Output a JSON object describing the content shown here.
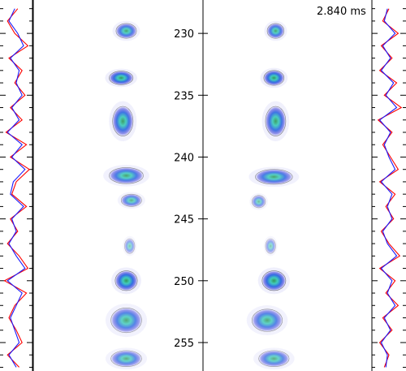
{
  "time_label": "2.840 ms",
  "chart_data": {
    "type": "heatmap",
    "y_axis": {
      "ticks": [
        230,
        235,
        240,
        245,
        250,
        255
      ],
      "ylim": [
        257.3,
        227.3
      ],
      "inverted": true
    },
    "panels": [
      "left-image",
      "right-image"
    ],
    "colormap": "white-blue-cyan-green",
    "left_profile": {
      "series": [
        {
          "name": "",
          "color": "#ff0000",
          "y": [
            228,
            229,
            230,
            231,
            232,
            233,
            234,
            235,
            236,
            237,
            238,
            239,
            240,
            241,
            242,
            243,
            244,
            245,
            246,
            247,
            248,
            249,
            250,
            251,
            252,
            253,
            254,
            255,
            256,
            257
          ],
          "values": [
            0.55,
            0.2,
            0.45,
            0.9,
            0.25,
            0.7,
            0.45,
            0.8,
            0.3,
            0.7,
            0.15,
            0.85,
            0.3,
            0.95,
            0.5,
            0.35,
            0.85,
            0.3,
            0.55,
            0.2,
            0.6,
            0.9,
            0.1,
            0.85,
            0.45,
            0.25,
            0.5,
            0.7,
            0.2,
            0.6
          ]
        },
        {
          "name": "",
          "color": "#1a1aff",
          "y": [
            228,
            229,
            230,
            231,
            232,
            233,
            234,
            235,
            236,
            237,
            238,
            239,
            240,
            241,
            242,
            243,
            244,
            245,
            246,
            247,
            248,
            249,
            250,
            251,
            252,
            253,
            254,
            255,
            256,
            257
          ],
          "values": [
            0.45,
            0.25,
            0.55,
            0.75,
            0.3,
            0.6,
            0.5,
            0.7,
            0.35,
            0.6,
            0.2,
            0.7,
            0.35,
            0.8,
            0.4,
            0.3,
            0.75,
            0.35,
            0.5,
            0.25,
            0.5,
            0.8,
            0.2,
            0.7,
            0.5,
            0.3,
            0.45,
            0.6,
            0.25,
            0.5
          ]
        }
      ]
    },
    "right_profile": {
      "series": [
        {
          "name": "",
          "color": "#ff0000",
          "y": [
            228,
            229,
            230,
            231,
            232,
            233,
            234,
            235,
            236,
            237,
            238,
            239,
            240,
            241,
            242,
            243,
            244,
            245,
            246,
            247,
            248,
            249,
            250,
            251,
            252,
            253,
            254,
            255,
            256,
            257
          ],
          "values": [
            0.5,
            0.3,
            0.8,
            0.25,
            0.6,
            0.2,
            0.75,
            0.35,
            0.9,
            0.15,
            0.6,
            0.3,
            0.55,
            0.8,
            0.2,
            0.7,
            0.4,
            0.65,
            0.25,
            0.5,
            0.85,
            0.2,
            0.7,
            0.4,
            0.8,
            0.3,
            0.6,
            0.2,
            0.5,
            0.35
          ]
        },
        {
          "name": "",
          "color": "#1a1aff",
          "y": [
            228,
            229,
            230,
            231,
            232,
            233,
            234,
            235,
            236,
            237,
            238,
            239,
            240,
            241,
            242,
            243,
            244,
            245,
            246,
            247,
            248,
            249,
            250,
            251,
            252,
            253,
            254,
            255,
            256,
            257
          ],
          "values": [
            0.45,
            0.35,
            0.7,
            0.3,
            0.55,
            0.25,
            0.65,
            0.4,
            0.75,
            0.2,
            0.55,
            0.35,
            0.5,
            0.7,
            0.25,
            0.6,
            0.45,
            0.6,
            0.3,
            0.45,
            0.75,
            0.25,
            0.6,
            0.45,
            0.7,
            0.35,
            0.55,
            0.25,
            0.45,
            0.4
          ]
        }
      ]
    },
    "blobs": [
      {
        "panel": "left-image",
        "y": 229.8,
        "x": 0.55,
        "w": 0.12,
        "h": 1.2,
        "intensity": 0.8
      },
      {
        "panel": "left-image",
        "y": 233.6,
        "x": 0.52,
        "w": 0.14,
        "h": 1.1,
        "intensity": 0.9
      },
      {
        "panel": "left-image",
        "y": 237.1,
        "x": 0.53,
        "w": 0.12,
        "h": 2.4,
        "intensity": 0.85
      },
      {
        "panel": "left-image",
        "y": 241.5,
        "x": 0.55,
        "w": 0.2,
        "h": 1.3,
        "intensity": 0.8
      },
      {
        "panel": "left-image",
        "y": 243.5,
        "x": 0.58,
        "w": 0.12,
        "h": 1.0,
        "intensity": 0.7
      },
      {
        "panel": "left-image",
        "y": 247.2,
        "x": 0.57,
        "w": 0.06,
        "h": 1.2,
        "intensity": 0.5
      },
      {
        "panel": "left-image",
        "y": 250.0,
        "x": 0.55,
        "w": 0.13,
        "h": 1.6,
        "intensity": 0.9
      },
      {
        "panel": "left-image",
        "y": 253.2,
        "x": 0.55,
        "w": 0.18,
        "h": 2.0,
        "intensity": 0.75
      },
      {
        "panel": "left-image",
        "y": 256.3,
        "x": 0.55,
        "w": 0.18,
        "h": 1.3,
        "intensity": 0.7
      },
      {
        "panel": "right-image",
        "y": 229.8,
        "x": 0.43,
        "w": 0.1,
        "h": 1.2,
        "intensity": 0.8
      },
      {
        "panel": "right-image",
        "y": 233.6,
        "x": 0.42,
        "w": 0.12,
        "h": 1.2,
        "intensity": 0.9
      },
      {
        "panel": "right-image",
        "y": 237.1,
        "x": 0.43,
        "w": 0.12,
        "h": 2.4,
        "intensity": 0.85
      },
      {
        "panel": "right-image",
        "y": 241.6,
        "x": 0.42,
        "w": 0.22,
        "h": 1.2,
        "intensity": 0.8
      },
      {
        "panel": "right-image",
        "y": 243.6,
        "x": 0.33,
        "w": 0.08,
        "h": 1.0,
        "intensity": 0.6
      },
      {
        "panel": "right-image",
        "y": 247.2,
        "x": 0.4,
        "w": 0.06,
        "h": 1.2,
        "intensity": 0.5
      },
      {
        "panel": "right-image",
        "y": 250.0,
        "x": 0.42,
        "w": 0.14,
        "h": 1.6,
        "intensity": 0.9
      },
      {
        "panel": "right-image",
        "y": 253.2,
        "x": 0.38,
        "w": 0.18,
        "h": 1.8,
        "intensity": 0.75
      },
      {
        "panel": "right-image",
        "y": 256.3,
        "x": 0.42,
        "w": 0.18,
        "h": 1.3,
        "intensity": 0.7
      }
    ]
  }
}
